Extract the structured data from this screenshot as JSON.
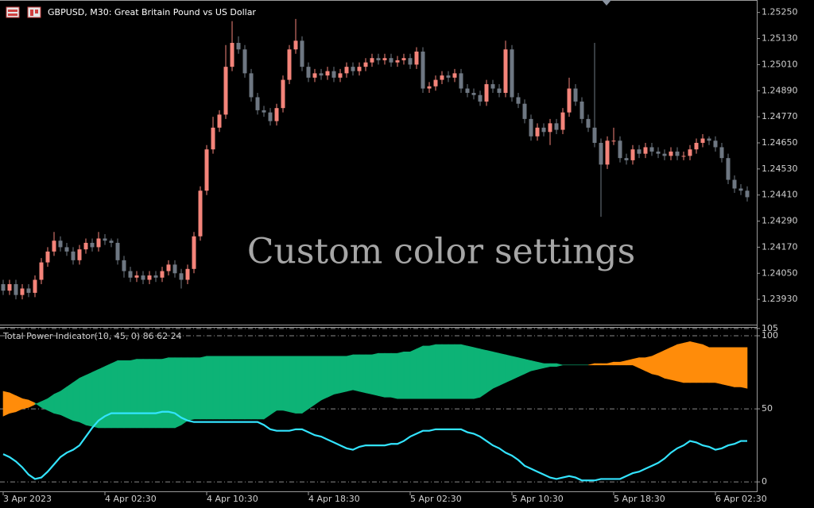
{
  "watermark": "Custom color settings",
  "chart_data": [
    {
      "type": "candlestick",
      "title": "GBPUSD, M30:  Great Britain Pound vs US Dollar",
      "up_color": "#f4847a",
      "down_color": "#6e7782",
      "categories": [
        "3 Apr 2023",
        null,
        null,
        null,
        null,
        null,
        null,
        null,
        null,
        null,
        null,
        null,
        null,
        null,
        null,
        null,
        "4 Apr 02:30",
        null,
        null,
        null,
        null,
        null,
        null,
        null,
        null,
        null,
        null,
        null,
        null,
        null,
        null,
        null,
        "4 Apr 10:30",
        null,
        null,
        null,
        null,
        null,
        null,
        null,
        null,
        null,
        null,
        null,
        null,
        null,
        null,
        null,
        "4 Apr 18:30",
        null,
        null,
        null,
        null,
        null,
        null,
        null,
        null,
        null,
        null,
        null,
        null,
        null,
        null,
        null,
        "5 Apr 02:30",
        null,
        null,
        null,
        null,
        null,
        null,
        null,
        null,
        null,
        null,
        null,
        null,
        null,
        null,
        null,
        "5 Apr 10:30",
        null,
        null,
        null,
        null,
        null,
        null,
        null,
        null,
        null,
        null,
        null,
        null,
        null,
        null,
        null,
        "5 Apr 18:30",
        null,
        null,
        null,
        null,
        null,
        null,
        null,
        null,
        null,
        null,
        null,
        null,
        null,
        null,
        null,
        "6 Apr 02:30",
        null,
        null,
        null,
        null,
        null
      ],
      "open": [
        1.24,
        1.2397,
        1.24,
        1.2395,
        1.2398,
        1.2396,
        1.2402,
        1.241,
        1.2415,
        1.242,
        1.2417,
        1.2415,
        1.2411,
        1.2416,
        1.2419,
        1.2417,
        1.2421,
        1.242,
        1.2419,
        1.2411,
        1.2406,
        1.2403,
        1.2404,
        1.2402,
        1.2404,
        1.2403,
        1.2406,
        1.2409,
        1.2405,
        1.2402,
        1.2407,
        1.2422,
        1.2443,
        1.2462,
        1.2472,
        1.2478,
        1.25,
        1.2511,
        1.2508,
        1.2497,
        1.2486,
        1.248,
        1.2479,
        1.2475,
        1.2481,
        1.2494,
        1.2508,
        1.2512,
        1.25,
        1.2495,
        1.2497,
        1.2496,
        1.2498,
        1.2495,
        1.2497,
        1.25,
        1.2498,
        1.25,
        1.2502,
        1.2504,
        1.2503,
        1.2504,
        1.2502,
        1.2503,
        1.2504,
        1.2501,
        1.2507,
        1.249,
        1.2491,
        1.2494,
        1.2496,
        1.2495,
        1.2497,
        1.249,
        1.2488,
        1.2487,
        1.2484,
        1.2492,
        1.249,
        1.2488,
        1.2508,
        1.2486,
        1.2483,
        1.2476,
        1.2468,
        1.2472,
        1.247,
        1.2474,
        1.2471,
        1.2479,
        1.249,
        1.2484,
        1.2476,
        1.2472,
        1.2465,
        1.2455,
        1.2466,
        1.2466,
        1.2458,
        1.2457,
        1.2462,
        1.246,
        1.2463,
        1.2461,
        1.246,
        1.2459,
        1.2461,
        1.2459,
        1.2459,
        1.2462,
        1.2465,
        1.2467,
        1.2466,
        1.2463,
        1.2458,
        1.2448,
        1.2444,
        1.2443
      ],
      "high": [
        1.2402,
        1.2402,
        1.2402,
        1.24,
        1.24,
        1.2404,
        1.2412,
        1.2417,
        1.2424,
        1.2422,
        1.2419,
        1.2417,
        1.2418,
        1.2421,
        1.2421,
        1.2424,
        1.2423,
        1.2421,
        1.2421,
        1.2413,
        1.2408,
        1.2406,
        1.2406,
        1.2406,
        1.2406,
        1.2408,
        1.2411,
        1.2411,
        1.2407,
        1.2409,
        1.2424,
        1.2445,
        1.2464,
        1.2477,
        1.248,
        1.251,
        1.2521,
        1.2514,
        1.251,
        1.2499,
        1.2488,
        1.2482,
        1.2481,
        1.2483,
        1.2496,
        1.251,
        1.2522,
        1.2514,
        1.2502,
        1.2499,
        1.2499,
        1.25,
        1.25,
        1.2499,
        1.2502,
        1.2502,
        1.2502,
        1.2504,
        1.2506,
        1.2506,
        1.2506,
        1.2506,
        1.2505,
        1.2506,
        1.2506,
        1.2509,
        1.2509,
        1.2493,
        1.2496,
        1.2498,
        1.2498,
        1.2499,
        1.2499,
        1.2492,
        1.249,
        1.2489,
        1.2494,
        1.2494,
        1.2492,
        1.2512,
        1.251,
        1.2488,
        1.2485,
        1.2478,
        1.2474,
        1.2474,
        1.2476,
        1.2476,
        1.2481,
        1.2495,
        1.2492,
        1.2486,
        1.2478,
        1.2511,
        1.2467,
        1.2468,
        1.2472,
        1.2468,
        1.246,
        1.2464,
        1.2464,
        1.2465,
        1.2465,
        1.2463,
        1.2462,
        1.2463,
        1.2463,
        1.2461,
        1.2464,
        1.2467,
        1.2469,
        1.2468,
        1.2468,
        1.2465,
        1.246,
        1.245,
        1.2446,
        1.2445
      ],
      "low": [
        1.2395,
        1.2395,
        1.2393,
        1.2393,
        1.2394,
        1.2394,
        1.24,
        1.2408,
        1.2413,
        1.2415,
        1.2413,
        1.2409,
        1.2409,
        1.2414,
        1.2415,
        1.2415,
        1.2418,
        1.2417,
        1.2409,
        1.2403,
        1.2401,
        1.2401,
        1.24,
        1.24,
        1.2401,
        1.2401,
        1.2404,
        1.2403,
        1.2398,
        1.24,
        1.2405,
        1.242,
        1.2441,
        1.246,
        1.247,
        1.2476,
        1.2498,
        1.2506,
        1.2495,
        1.2484,
        1.2478,
        1.2477,
        1.2473,
        1.2473,
        1.2479,
        1.2492,
        1.2506,
        1.2498,
        1.2493,
        1.2493,
        1.2494,
        1.2494,
        1.2493,
        1.2493,
        1.2495,
        1.2496,
        1.2496,
        1.2498,
        1.25,
        1.2501,
        1.2501,
        1.25,
        1.25,
        1.2501,
        1.2499,
        1.2499,
        1.2488,
        1.2488,
        1.2489,
        1.2492,
        1.2493,
        1.2493,
        1.2488,
        1.2486,
        1.2485,
        1.2482,
        1.2482,
        1.2488,
        1.2486,
        1.2486,
        1.2484,
        1.2481,
        1.2474,
        1.2466,
        1.2466,
        1.2468,
        1.2464,
        1.2469,
        1.2469,
        1.2477,
        1.2482,
        1.2474,
        1.247,
        1.2463,
        1.2431,
        1.2453,
        1.2464,
        1.2456,
        1.2455,
        1.2455,
        1.2458,
        1.2458,
        1.2459,
        1.2458,
        1.2457,
        1.2457,
        1.2457,
        1.2457,
        1.2457,
        1.246,
        1.2463,
        1.2464,
        1.2461,
        1.2456,
        1.2446,
        1.2442,
        1.2441,
        1.2438
      ],
      "close": [
        1.2397,
        1.24,
        1.2395,
        1.2398,
        1.2396,
        1.2402,
        1.241,
        1.2415,
        1.242,
        1.2417,
        1.2415,
        1.2411,
        1.2416,
        1.2419,
        1.2417,
        1.2421,
        1.242,
        1.2419,
        1.2411,
        1.2406,
        1.2403,
        1.2404,
        1.2402,
        1.2404,
        1.2403,
        1.2406,
        1.2409,
        1.2405,
        1.2402,
        1.2407,
        1.2422,
        1.2443,
        1.2462,
        1.2472,
        1.2478,
        1.25,
        1.2511,
        1.2508,
        1.2497,
        1.2486,
        1.248,
        1.2479,
        1.2475,
        1.2481,
        1.2494,
        1.2508,
        1.2512,
        1.25,
        1.2495,
        1.2497,
        1.2496,
        1.2498,
        1.2495,
        1.2497,
        1.25,
        1.2498,
        1.25,
        1.2502,
        1.2504,
        1.2503,
        1.2504,
        1.2502,
        1.2503,
        1.2504,
        1.2501,
        1.2507,
        1.249,
        1.2491,
        1.2494,
        1.2496,
        1.2495,
        1.2497,
        1.249,
        1.2488,
        1.2487,
        1.2484,
        1.2492,
        1.249,
        1.2488,
        1.2508,
        1.2486,
        1.2483,
        1.2476,
        1.2468,
        1.2472,
        1.247,
        1.2474,
        1.2471,
        1.2479,
        1.249,
        1.2484,
        1.2476,
        1.2472,
        1.2465,
        1.2455,
        1.2466,
        1.2466,
        1.2458,
        1.2457,
        1.2462,
        1.246,
        1.2463,
        1.2461,
        1.246,
        1.2459,
        1.2461,
        1.2459,
        1.2459,
        1.2462,
        1.2465,
        1.2467,
        1.2466,
        1.2463,
        1.2458,
        1.2448,
        1.2444,
        1.2443,
        1.244
      ],
      "ylim": [
        1.2381,
        1.253
      ],
      "yticks": [
        {
          "value": 1.2393,
          "label": "1.23930"
        },
        {
          "value": 1.2405,
          "label": "1.24050"
        },
        {
          "value": 1.2417,
          "label": "1.24170"
        },
        {
          "value": 1.2429,
          "label": "1.24290"
        },
        {
          "value": 1.2441,
          "label": "1.24410"
        },
        {
          "value": 1.2453,
          "label": "1.24530"
        },
        {
          "value": 1.2465,
          "label": "1.24650"
        },
        {
          "value": 1.2477,
          "label": "1.24770"
        },
        {
          "value": 1.2489,
          "label": "1.24890"
        },
        {
          "value": 1.2501,
          "label": "1.25010"
        },
        {
          "value": 1.2513,
          "label": "1.25130"
        },
        {
          "value": 1.2525,
          "label": "1.25250"
        }
      ]
    },
    {
      "type": "band",
      "title": "Total Power Indicator(10, 45, 0) 86 62 24",
      "series": [
        {
          "color": "#0db376",
          "values": [
            45,
            47,
            48,
            50,
            51,
            53,
            55,
            57,
            60,
            62,
            65,
            68,
            71,
            73,
            75,
            77,
            79,
            81,
            83,
            83,
            83,
            84,
            84,
            84,
            84,
            84,
            85,
            85,
            85,
            85,
            85,
            85,
            86,
            86,
            86,
            86,
            86,
            86,
            86,
            86,
            86,
            86,
            86,
            86,
            86,
            86,
            86,
            86,
            86,
            86,
            86,
            86,
            86,
            86,
            86,
            87,
            87,
            87,
            87,
            88,
            88,
            88,
            88,
            89,
            89,
            91,
            93,
            93,
            94,
            94,
            94,
            94,
            94,
            93,
            92,
            91,
            90,
            89,
            88,
            87,
            86,
            85,
            84,
            83,
            82,
            81,
            81,
            81,
            80,
            80,
            80,
            80,
            80,
            80,
            80,
            80,
            80,
            80,
            80,
            80,
            78,
            76,
            74,
            73,
            71,
            70,
            69,
            68,
            68,
            68,
            68,
            68,
            68,
            67,
            66,
            65,
            65,
            64
          ]
        },
        {
          "color": "#ff8c0a",
          "values": [
            62,
            61,
            59,
            57,
            56,
            54,
            51,
            49,
            47,
            46,
            44,
            42,
            41,
            39,
            38,
            37,
            37,
            37,
            37,
            37,
            37,
            37,
            37,
            37,
            37,
            37,
            37,
            37,
            39,
            42,
            43,
            43,
            43,
            43,
            43,
            43,
            43,
            43,
            43,
            43,
            43,
            43,
            46,
            49,
            49,
            48,
            47,
            47,
            50,
            53,
            56,
            58,
            60,
            61,
            62,
            63,
            62,
            61,
            60,
            59,
            58,
            58,
            57,
            57,
            57,
            57,
            57,
            57,
            57,
            57,
            57,
            57,
            57,
            57,
            57,
            58,
            61,
            64,
            66,
            68,
            70,
            72,
            74,
            76,
            77,
            78,
            79,
            79,
            80,
            80,
            80,
            80,
            80,
            81,
            81,
            81,
            82,
            82,
            83,
            84,
            85,
            85,
            86,
            88,
            90,
            92,
            94,
            95,
            96,
            95,
            94,
            92,
            92,
            92,
            92,
            92,
            92,
            92
          ]
        },
        {
          "color": "#33e4ff",
          "values": [
            19,
            17,
            14,
            10,
            5,
            2,
            3,
            7,
            12,
            17,
            20,
            22,
            25,
            31,
            37,
            42,
            45,
            47,
            47,
            47,
            47,
            47,
            47,
            47,
            47,
            48,
            48,
            47,
            44,
            42,
            41,
            41,
            41,
            41,
            41,
            41,
            41,
            41,
            41,
            41,
            41,
            39,
            36,
            35,
            35,
            35,
            36,
            36,
            34,
            32,
            31,
            29,
            27,
            25,
            23,
            22,
            24,
            25,
            25,
            25,
            25,
            26,
            26,
            28,
            31,
            33,
            35,
            35,
            36,
            36,
            36,
            36,
            36,
            34,
            33,
            31,
            28,
            25,
            23,
            20,
            18,
            15,
            11,
            9,
            7,
            5,
            3,
            2,
            3,
            4,
            3,
            1,
            1,
            1,
            2,
            2,
            2,
            2,
            4,
            6,
            7,
            9,
            11,
            13,
            16,
            20,
            23,
            25,
            28,
            27,
            25,
            24,
            22,
            23,
            25,
            26,
            28,
            28
          ]
        }
      ],
      "ylim": [
        -7,
        106
      ],
      "yticks": [
        0,
        50,
        100,
        105
      ],
      "grid": true
    }
  ]
}
